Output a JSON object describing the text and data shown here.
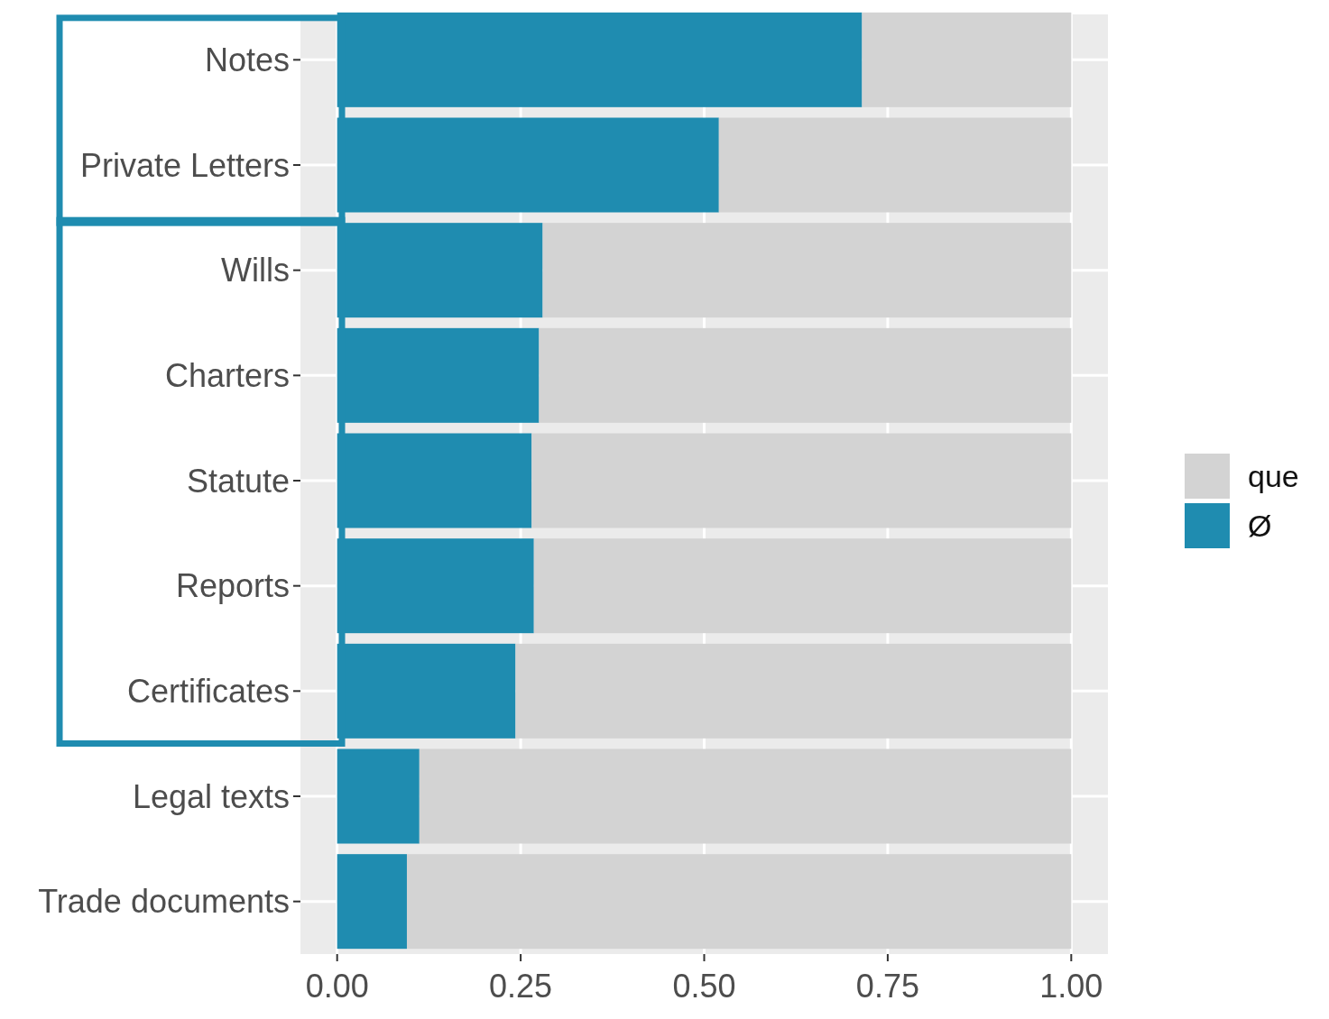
{
  "chart_data": {
    "type": "bar",
    "orientation": "horizontal",
    "stacked": true,
    "categories": [
      "Notes",
      "Private Letters",
      "Wills",
      "Charters",
      "Statute",
      "Reports",
      "Certificates",
      "Legal texts",
      "Trade documents"
    ],
    "series": [
      {
        "name": "Ø",
        "color": "#1f8cb0",
        "values": [
          0.715,
          0.52,
          0.28,
          0.275,
          0.265,
          0.268,
          0.243,
          0.112,
          0.095
        ]
      },
      {
        "name": "que",
        "color": "#d3d3d3",
        "values": [
          0.285,
          0.48,
          0.72,
          0.725,
          0.735,
          0.732,
          0.757,
          0.888,
          0.905
        ]
      }
    ],
    "xlim": [
      -0.05,
      1.05
    ],
    "xticks": [
      {
        "value": 0,
        "label": "0.00"
      },
      {
        "value": 0.25,
        "label": "0.25"
      },
      {
        "value": 0.5,
        "label": "0.50"
      },
      {
        "value": 0.75,
        "label": "0.75"
      },
      {
        "value": 1,
        "label": "1.00"
      }
    ],
    "grid": true,
    "legend": "right"
  }
}
